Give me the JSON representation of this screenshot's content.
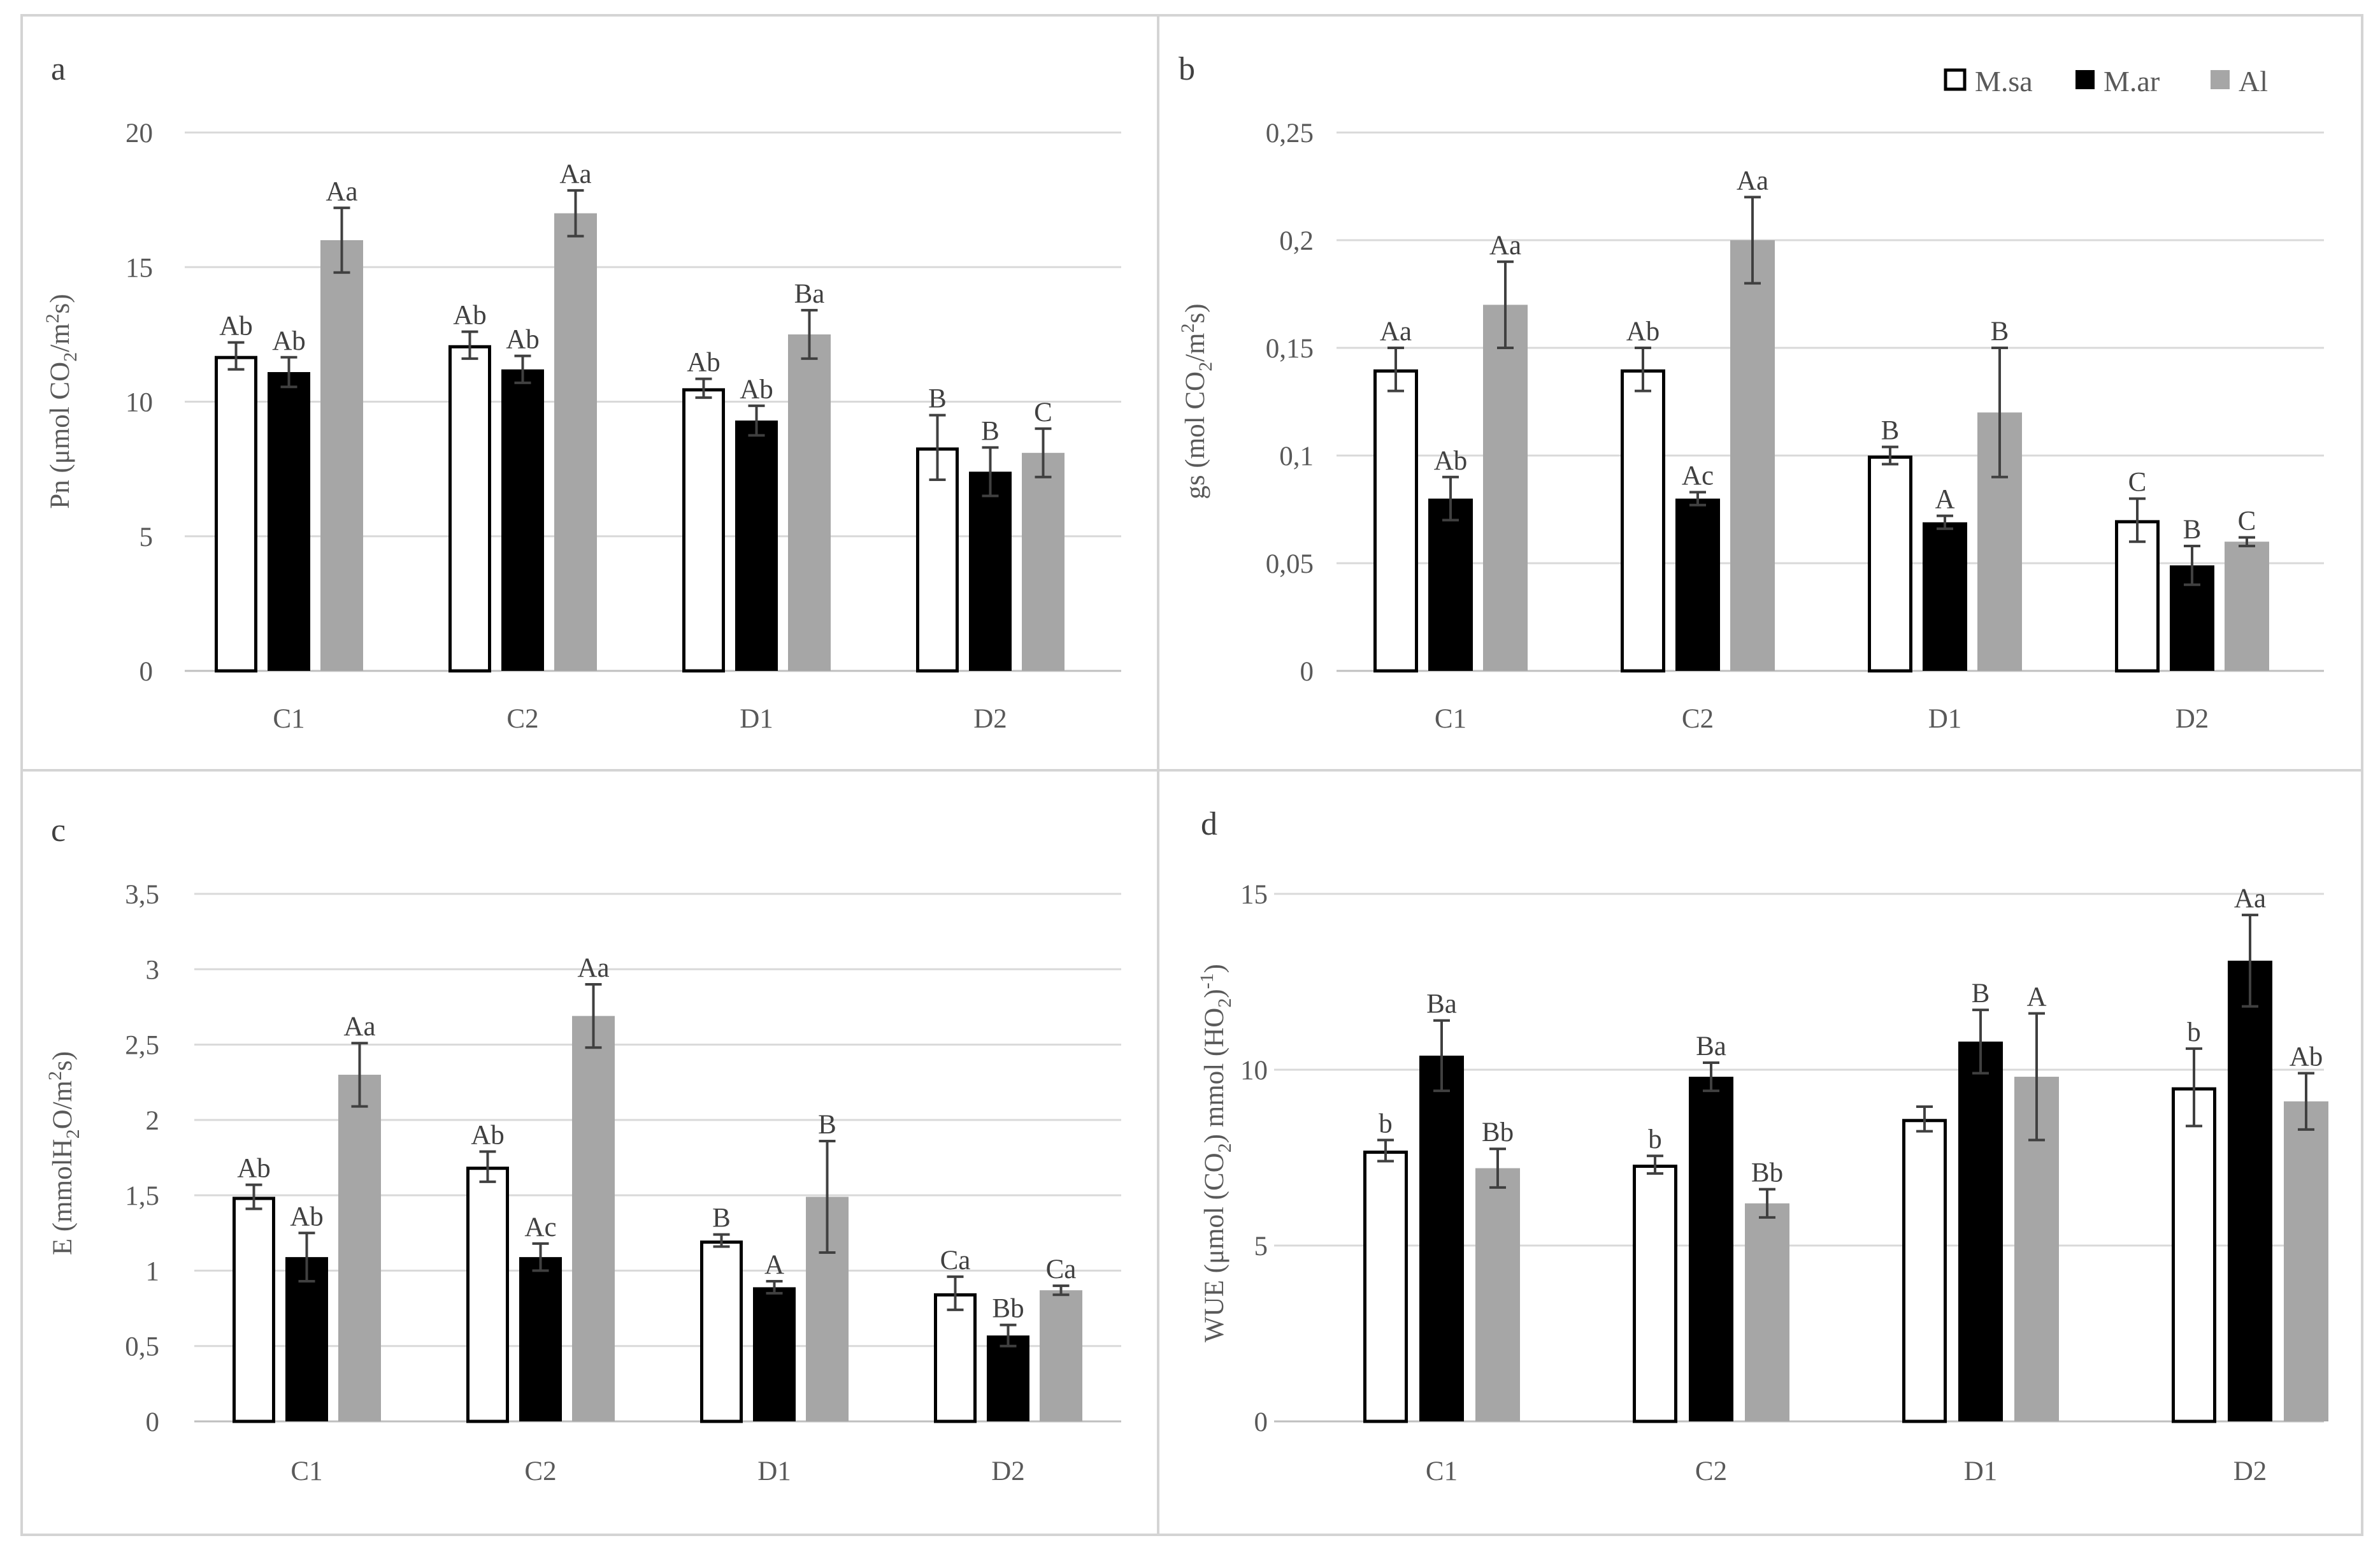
{
  "colors": {
    "M.sa": "#ffffff",
    "M.ar": "#000000",
    "Al": "#a6a6a6"
  },
  "legend": [
    "M.sa",
    "M.ar",
    "Al"
  ],
  "chart_data": [
    {
      "panel": "a",
      "type": "bar",
      "categories": [
        "C1",
        "C2",
        "D1",
        "D2"
      ],
      "ylabel": "Pn (μmol CO2/m2s)",
      "ylim": [
        0,
        20
      ],
      "yticks": [
        "0",
        "5",
        "10",
        "15",
        "20"
      ],
      "tick_values": [
        0,
        5,
        10,
        15,
        20
      ],
      "series": [
        {
          "name": "M.sa",
          "values": [
            11.7,
            12.1,
            10.5,
            8.3
          ],
          "errors": [
            0.5,
            0.5,
            0.35,
            1.2
          ],
          "labels": [
            "Ab",
            "Ab",
            "Ab",
            "B"
          ]
        },
        {
          "name": "M.ar",
          "values": [
            11.1,
            11.2,
            9.3,
            7.4
          ],
          "errors": [
            0.55,
            0.5,
            0.55,
            0.9
          ],
          "labels": [
            "Ab",
            "Ab",
            "Ab",
            "B"
          ]
        },
        {
          "name": "Al",
          "values": [
            16.0,
            17.0,
            12.5,
            8.1
          ],
          "errors": [
            1.2,
            0.85,
            0.9,
            0.9
          ],
          "labels": [
            "Aa",
            "Aa",
            "Ba",
            "C"
          ]
        }
      ]
    },
    {
      "panel": "b",
      "type": "bar",
      "categories": [
        "C1",
        "C2",
        "D1",
        "D2"
      ],
      "ylabel": "gs (mol CO2/m2s)",
      "ylim": [
        0,
        0.25
      ],
      "yticks": [
        "0",
        "0,05",
        "0,1",
        "0,15",
        "0,2",
        "0,25"
      ],
      "tick_values": [
        0,
        0.05,
        0.1,
        0.15,
        0.2,
        0.25
      ],
      "series": [
        {
          "name": "M.sa",
          "values": [
            0.14,
            0.14,
            0.1,
            0.07
          ],
          "errors": [
            0.01,
            0.01,
            0.004,
            0.01
          ],
          "labels": [
            "Aa",
            "Ab",
            "B",
            "C"
          ]
        },
        {
          "name": "M.ar",
          "values": [
            0.08,
            0.08,
            0.069,
            0.049
          ],
          "errors": [
            0.01,
            0.003,
            0.003,
            0.009
          ],
          "labels": [
            "Ab",
            "Ac",
            "A",
            "B"
          ]
        },
        {
          "name": "Al",
          "values": [
            0.17,
            0.2,
            0.12,
            0.06
          ],
          "errors": [
            0.02,
            0.02,
            0.03,
            0.002
          ],
          "labels": [
            "Aa",
            "Aa",
            "B",
            "C"
          ]
        }
      ]
    },
    {
      "panel": "c",
      "type": "bar",
      "categories": [
        "C1",
        "C2",
        "D1",
        "D2"
      ],
      "ylabel": "E (mmolH2O/m2s)",
      "ylim": [
        0,
        3.5
      ],
      "yticks": [
        "0",
        "0,5",
        "1",
        "1,5",
        "2",
        "2,5",
        "3",
        "3,5"
      ],
      "tick_values": [
        0,
        0.5,
        1,
        1.5,
        2,
        2.5,
        3,
        3.5
      ],
      "series": [
        {
          "name": "M.sa",
          "values": [
            1.49,
            1.69,
            1.2,
            0.85
          ],
          "errors": [
            0.08,
            0.1,
            0.04,
            0.11
          ],
          "labels": [
            "Ab",
            "Ab",
            "B",
            "Ca"
          ]
        },
        {
          "name": "M.ar",
          "values": [
            1.09,
            1.09,
            0.89,
            0.57
          ],
          "errors": [
            0.16,
            0.09,
            0.04,
            0.07
          ],
          "labels": [
            "Ab",
            "Ac",
            "A",
            "Bb"
          ]
        },
        {
          "name": "Al",
          "values": [
            2.3,
            2.69,
            1.49,
            0.87
          ],
          "errors": [
            0.21,
            0.21,
            0.37,
            0.03
          ],
          "labels": [
            "Aa",
            "Aa",
            "B",
            "Ca"
          ]
        }
      ]
    },
    {
      "panel": "d",
      "type": "bar",
      "categories": [
        "C1",
        "C2",
        "D1",
        "D2"
      ],
      "ylabel": "WUE (μmol (CO2) mmol (HO2)-1)",
      "ylim": [
        0,
        15
      ],
      "yticks": [
        "0",
        "5",
        "10",
        "15"
      ],
      "tick_values": [
        0,
        5,
        10,
        15
      ],
      "series": [
        {
          "name": "M.sa",
          "values": [
            7.7,
            7.3,
            8.6,
            9.5
          ],
          "errors": [
            0.3,
            0.25,
            0.35,
            1.1
          ],
          "labels": [
            "b",
            "b",
            "",
            "b"
          ]
        },
        {
          "name": "M.ar",
          "values": [
            10.4,
            9.8,
            10.8,
            13.1
          ],
          "errors": [
            1.0,
            0.4,
            0.9,
            1.3
          ],
          "labels": [
            "Ba",
            "Ba",
            "B",
            "Aa"
          ]
        },
        {
          "name": "Al",
          "values": [
            7.2,
            6.2,
            9.8,
            9.1
          ],
          "errors": [
            0.55,
            0.4,
            1.8,
            0.8
          ],
          "labels": [
            "Bb",
            "Bb",
            "A",
            "Ab"
          ]
        }
      ]
    }
  ]
}
